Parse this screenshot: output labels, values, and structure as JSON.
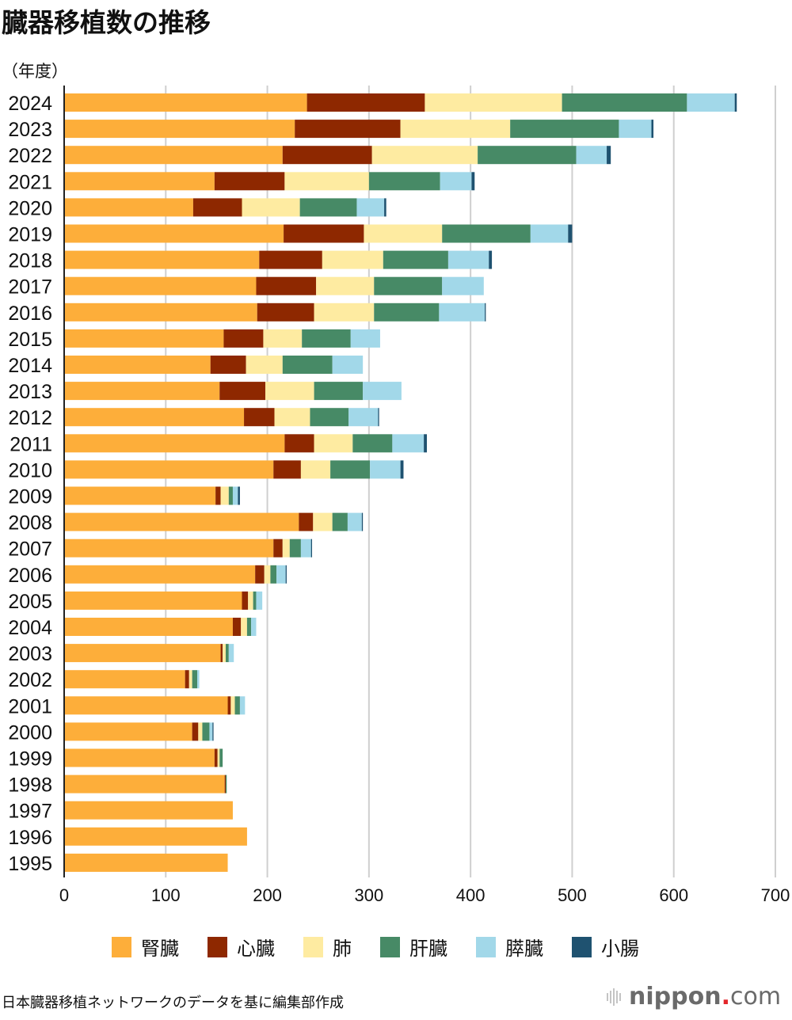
{
  "title": "臓器移植数の推移",
  "source": "日本臓器移植ネットワークのデータを基に編集部作成",
  "brand": {
    "name": "nippon",
    "dot": ".",
    "tld": "com"
  },
  "chart_data": {
    "type": "bar",
    "orientation": "horizontal",
    "stacked": true,
    "title": "臓器移植数の推移",
    "ylabel": "（年度）",
    "xlabel": "",
    "xlim": [
      0,
      700
    ],
    "xticks": [
      0,
      100,
      200,
      300,
      400,
      500,
      600,
      700
    ],
    "grid": true,
    "legend_position": "bottom",
    "categories": [
      "2024",
      "2023",
      "2022",
      "2021",
      "2020",
      "2019",
      "2018",
      "2017",
      "2016",
      "2015",
      "2014",
      "2013",
      "2012",
      "2011",
      "2010",
      "2009",
      "2008",
      "2007",
      "2006",
      "2005",
      "2004",
      "2003",
      "2002",
      "2001",
      "2000",
      "1999",
      "1998",
      "1997",
      "1996",
      "1995"
    ],
    "series": [
      {
        "name": "腎臓",
        "color": "#FDAE3A",
        "values": [
          239,
          227,
          215,
          148,
          127,
          216,
          192,
          189,
          190,
          157,
          144,
          153,
          177,
          217,
          206,
          149,
          231,
          206,
          188,
          175,
          166,
          154,
          119,
          161,
          126,
          148,
          158,
          166,
          180,
          161
        ]
      },
      {
        "name": "心臓",
        "color": "#8E2800",
        "values": [
          116,
          104,
          88,
          69,
          48,
          79,
          62,
          59,
          56,
          39,
          35,
          45,
          30,
          29,
          27,
          5,
          14,
          9,
          9,
          6,
          8,
          2,
          4,
          3,
          6,
          3,
          1,
          0,
          0,
          0
        ]
      },
      {
        "name": "肺",
        "color": "#FEEBA1",
        "values": [
          135,
          108,
          104,
          83,
          57,
          77,
          60,
          57,
          59,
          38,
          36,
          48,
          35,
          38,
          29,
          8,
          19,
          7,
          6,
          5,
          6,
          3,
          3,
          4,
          4,
          2,
          0,
          0,
          0,
          0
        ]
      },
      {
        "name": "肝臓",
        "color": "#478A66",
        "values": [
          123,
          107,
          97,
          70,
          56,
          87,
          64,
          67,
          64,
          48,
          49,
          48,
          38,
          39,
          39,
          4,
          15,
          11,
          6,
          3,
          4,
          3,
          5,
          5,
          7,
          3,
          1,
          0,
          0,
          0
        ]
      },
      {
        "name": "膵臓",
        "color": "#A2D8E9",
        "values": [
          47,
          32,
          30,
          31,
          27,
          37,
          40,
          41,
          45,
          29,
          30,
          38,
          29,
          31,
          30,
          5,
          14,
          10,
          9,
          6,
          5,
          5,
          2,
          5,
          3,
          0,
          0,
          0,
          0,
          0
        ]
      },
      {
        "name": "小腸",
        "color": "#1F5270",
        "values": [
          2,
          2,
          4,
          3,
          2,
          4,
          3,
          0,
          1,
          0,
          0,
          0,
          1,
          3,
          3,
          2,
          1,
          1,
          1,
          0,
          0,
          0,
          0,
          0,
          1,
          0,
          0,
          0,
          0,
          0
        ]
      }
    ]
  }
}
